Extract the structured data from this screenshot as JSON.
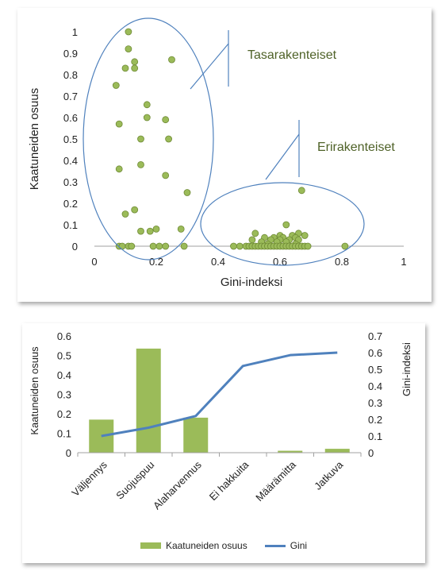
{
  "chart_data": [
    {
      "type": "scatter",
      "xlabel": "Gini-indeksi",
      "ylabel": "Kaatuneiden osuus",
      "xlim": [
        0,
        1
      ],
      "ylim": [
        0,
        1
      ],
      "x_ticks": [
        "0",
        "0.2",
        "0.4",
        "0.6",
        "0.8",
        "1"
      ],
      "y_ticks": [
        "0",
        "0.1",
        "0.2",
        "0.3",
        "0.4",
        "0.5",
        "0.6",
        "0.7",
        "0.8",
        "0.9",
        "1"
      ],
      "grid": false,
      "point_color": "#9bbb59",
      "annotations": [
        {
          "text": "Tasarakenteiset",
          "color": "#4f6228"
        },
        {
          "text": "Erirakenteiset",
          "color": "#4f6228"
        }
      ],
      "points": [
        [
          0.11,
          1.0
        ],
        [
          0.11,
          0.92
        ],
        [
          0.13,
          0.86
        ],
        [
          0.1,
          0.83
        ],
        [
          0.13,
          0.83
        ],
        [
          0.25,
          0.87
        ],
        [
          0.07,
          0.75
        ],
        [
          0.17,
          0.66
        ],
        [
          0.08,
          0.57
        ],
        [
          0.17,
          0.6
        ],
        [
          0.23,
          0.59
        ],
        [
          0.15,
          0.5
        ],
        [
          0.24,
          0.5
        ],
        [
          0.15,
          0.38
        ],
        [
          0.08,
          0.36
        ],
        [
          0.23,
          0.33
        ],
        [
          0.3,
          0.25
        ],
        [
          0.13,
          0.17
        ],
        [
          0.1,
          0.15
        ],
        [
          0.15,
          0.07
        ],
        [
          0.18,
          0.07
        ],
        [
          0.2,
          0.08
        ],
        [
          0.28,
          0.08
        ],
        [
          0.08,
          0.0
        ],
        [
          0.09,
          0.0
        ],
        [
          0.11,
          0.0
        ],
        [
          0.12,
          0.0
        ],
        [
          0.19,
          0.0
        ],
        [
          0.21,
          0.0
        ],
        [
          0.23,
          0.0
        ],
        [
          0.29,
          0.0
        ],
        [
          0.67,
          0.26
        ],
        [
          0.62,
          0.1
        ],
        [
          0.52,
          0.06
        ],
        [
          0.66,
          0.06
        ],
        [
          0.6,
          0.05
        ],
        [
          0.64,
          0.05
        ],
        [
          0.68,
          0.05
        ],
        [
          0.55,
          0.04
        ],
        [
          0.58,
          0.04
        ],
        [
          0.61,
          0.04
        ],
        [
          0.65,
          0.04
        ],
        [
          0.51,
          0.03
        ],
        [
          0.57,
          0.03
        ],
        [
          0.6,
          0.03
        ],
        [
          0.63,
          0.03
        ],
        [
          0.66,
          0.03
        ],
        [
          0.54,
          0.02
        ],
        [
          0.59,
          0.02
        ],
        [
          0.62,
          0.02
        ],
        [
          0.56,
          0.01
        ],
        [
          0.65,
          0.01
        ],
        [
          0.45,
          0.0
        ],
        [
          0.47,
          0.0
        ],
        [
          0.49,
          0.0
        ],
        [
          0.5,
          0.0
        ],
        [
          0.51,
          0.0
        ],
        [
          0.52,
          0.0
        ],
        [
          0.53,
          0.0
        ],
        [
          0.54,
          0.0
        ],
        [
          0.55,
          0.0
        ],
        [
          0.56,
          0.0
        ],
        [
          0.57,
          0.0
        ],
        [
          0.58,
          0.0
        ],
        [
          0.59,
          0.0
        ],
        [
          0.6,
          0.0
        ],
        [
          0.61,
          0.0
        ],
        [
          0.62,
          0.0
        ],
        [
          0.63,
          0.0
        ],
        [
          0.64,
          0.0
        ],
        [
          0.65,
          0.0
        ],
        [
          0.66,
          0.0
        ],
        [
          0.67,
          0.0
        ],
        [
          0.68,
          0.0
        ],
        [
          0.69,
          0.0
        ],
        [
          0.81,
          0.0
        ]
      ]
    },
    {
      "type": "bar",
      "categories": [
        "Väljennys",
        "Suojuspuu",
        "Alaharvennus",
        "Ei hakkuita",
        "Määrämitta",
        "Jatkuva"
      ],
      "ylabel": "Kaatuneiden osuus",
      "y2label": "Gini-indeksi",
      "ylim": [
        0,
        0.6
      ],
      "y2lim": [
        0,
        0.7
      ],
      "y_ticks": [
        "0",
        "0.1",
        "0.2",
        "0.3",
        "0.4",
        "0.5",
        "0.6"
      ],
      "y2_ticks": [
        "0",
        "0.1",
        "0.2",
        "0.3",
        "0.4",
        "0.5",
        "0.6",
        "0.7"
      ],
      "grid": false,
      "legend_position": "bottom",
      "series": [
        {
          "name": "Kaatuneiden osuus",
          "kind": "bar",
          "axis": "left",
          "color": "#9bbb59",
          "values": [
            0.17,
            0.535,
            0.18,
            0.0,
            0.01,
            0.02
          ]
        },
        {
          "name": "Gini",
          "kind": "line",
          "axis": "right",
          "color": "#4f81bd",
          "values": [
            0.1,
            0.15,
            0.22,
            0.52,
            0.585,
            0.6
          ]
        }
      ]
    }
  ]
}
